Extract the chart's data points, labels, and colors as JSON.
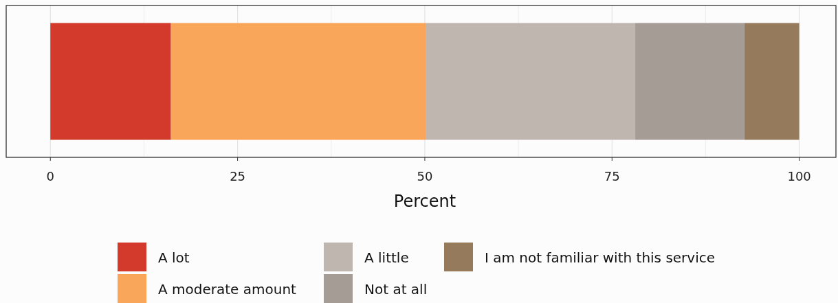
{
  "chart_data": {
    "type": "bar",
    "orientation": "horizontal",
    "stacked": true,
    "xlabel": "Percent",
    "categories": [
      null
    ],
    "series": [
      {
        "name": "A lot",
        "color": "#d33a2c",
        "values": [
          16.1
        ]
      },
      {
        "name": "A moderate amount",
        "color": "#f9a55a",
        "values": [
          34
        ]
      },
      {
        "name": "A little",
        "color": "#bfb6b0",
        "values": [
          28
        ]
      },
      {
        "name": "Not at all",
        "color": "#a59c96",
        "values": [
          14.6
        ]
      },
      {
        "name": "I am not familiar with this service",
        "color": "#967a5c",
        "values": [
          7.3
        ]
      }
    ],
    "xlim": [
      -5.9,
      104.9
    ],
    "xticks": [
      0,
      {
        "value": 12.5,
        "label": null
      },
      25,
      {
        "value": 37.5,
        "label": null
      },
      50,
      {
        "value": 62.5,
        "label": null
      },
      75,
      {
        "value": 87.5,
        "label": null
      },
      100
    ],
    "grid": "x",
    "legend": "bottom"
  }
}
